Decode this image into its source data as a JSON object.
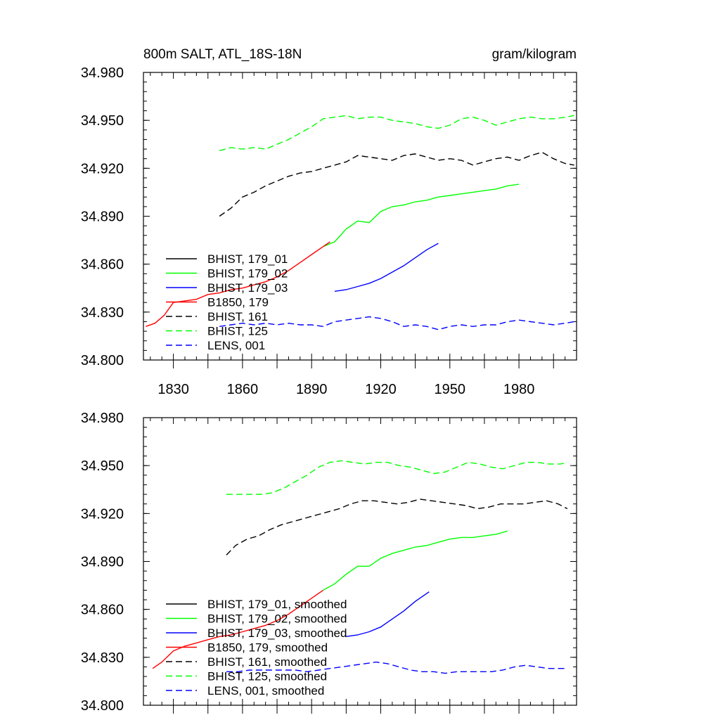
{
  "chart_data": [
    {
      "type": "line",
      "title": "800m SALT, ATL_18S-18N",
      "units": "gram/kilogram",
      "xlabel": "",
      "ylabel": "",
      "xlim": [
        1817,
        2005
      ],
      "ylim": [
        34.8,
        34.98
      ],
      "xticks": [
        "1830",
        "1860",
        "1890",
        "1920",
        "1950",
        "1980"
      ],
      "yticks": [
        "34.800",
        "34.830",
        "34.860",
        "34.890",
        "34.920",
        "34.950",
        "34.980"
      ],
      "legend_position": "lower-left",
      "series": [
        {
          "name": "BHIST, 179_01",
          "color": "#000000",
          "dash": "solid",
          "x": [],
          "y": []
        },
        {
          "name": "BHIST, 179_02",
          "color": "#00ff00",
          "dash": "solid",
          "x": [
            1895,
            1900,
            1905,
            1910,
            1915,
            1920,
            1925,
            1930,
            1935,
            1940,
            1945,
            1950,
            1955,
            1960,
            1965,
            1970,
            1975,
            1980
          ],
          "y": [
            34.871,
            34.874,
            34.882,
            34.887,
            34.886,
            34.893,
            34.896,
            34.897,
            34.899,
            34.9,
            34.902,
            34.903,
            34.904,
            34.905,
            34.906,
            34.907,
            34.909,
            34.91
          ]
        },
        {
          "name": "BHIST, 179_03",
          "color": "#0000ff",
          "dash": "solid",
          "x": [
            1900,
            1905,
            1910,
            1915,
            1920,
            1925,
            1930,
            1935,
            1940,
            1945
          ],
          "y": [
            34.843,
            34.844,
            34.846,
            34.848,
            34.851,
            34.855,
            34.859,
            34.864,
            34.869,
            34.873
          ]
        },
        {
          "name": "B1850, 179",
          "color": "#ff0000",
          "dash": "solid",
          "x": [
            1818,
            1822,
            1826,
            1830,
            1835,
            1840,
            1845,
            1850,
            1855,
            1860,
            1865,
            1870,
            1875,
            1880,
            1885,
            1890,
            1895,
            1898
          ],
          "y": [
            34.821,
            34.823,
            34.828,
            34.836,
            34.837,
            34.838,
            34.841,
            34.842,
            34.844,
            34.845,
            34.847,
            34.849,
            34.852,
            34.856,
            34.861,
            34.866,
            34.871,
            34.874
          ]
        },
        {
          "name": "BHIST, 161",
          "color": "#000000",
          "dash": "dashed",
          "x": [
            1850,
            1855,
            1860,
            1865,
            1870,
            1875,
            1880,
            1885,
            1890,
            1895,
            1900,
            1905,
            1910,
            1915,
            1920,
            1925,
            1930,
            1935,
            1940,
            1945,
            1950,
            1955,
            1960,
            1965,
            1970,
            1975,
            1980,
            1985,
            1990,
            1995,
            2000,
            2004
          ],
          "y": [
            34.89,
            34.895,
            34.902,
            34.905,
            34.909,
            34.912,
            34.915,
            34.917,
            34.918,
            34.92,
            34.922,
            34.924,
            34.928,
            34.927,
            34.926,
            34.925,
            34.928,
            34.929,
            34.927,
            34.925,
            34.926,
            34.925,
            34.922,
            34.924,
            34.926,
            34.927,
            34.925,
            34.928,
            34.93,
            34.926,
            34.923,
            34.922
          ]
        },
        {
          "name": "BHIST, 125",
          "color": "#00ff00",
          "dash": "dashed",
          "x": [
            1850,
            1855,
            1860,
            1865,
            1870,
            1875,
            1880,
            1885,
            1890,
            1895,
            1900,
            1905,
            1910,
            1915,
            1920,
            1925,
            1930,
            1935,
            1940,
            1945,
            1950,
            1955,
            1960,
            1965,
            1970,
            1975,
            1980,
            1985,
            1990,
            1995,
            2000,
            2004
          ],
          "y": [
            34.931,
            34.933,
            34.932,
            34.933,
            34.932,
            34.935,
            34.938,
            34.942,
            34.946,
            34.951,
            34.952,
            34.953,
            34.951,
            34.952,
            34.952,
            34.95,
            34.949,
            34.948,
            34.946,
            34.945,
            34.947,
            34.951,
            34.952,
            34.95,
            34.947,
            34.949,
            34.951,
            34.952,
            34.951,
            34.951,
            34.952,
            34.953
          ]
        },
        {
          "name": "LENS, 001",
          "color": "#0000ff",
          "dash": "dashed",
          "x": [
            1850,
            1855,
            1860,
            1865,
            1870,
            1875,
            1880,
            1885,
            1890,
            1895,
            1900,
            1905,
            1910,
            1915,
            1920,
            1925,
            1930,
            1935,
            1940,
            1945,
            1950,
            1955,
            1960,
            1965,
            1970,
            1975,
            1980,
            1985,
            1990,
            1995,
            2000,
            2004
          ],
          "y": [
            34.821,
            34.822,
            34.823,
            34.822,
            34.823,
            34.822,
            34.823,
            34.822,
            34.822,
            34.821,
            34.824,
            34.825,
            34.826,
            34.827,
            34.826,
            34.824,
            34.821,
            34.822,
            34.821,
            34.819,
            34.821,
            34.822,
            34.821,
            34.822,
            34.822,
            34.824,
            34.825,
            34.824,
            34.823,
            34.822,
            34.823,
            34.824
          ]
        }
      ]
    },
    {
      "type": "line",
      "title": "",
      "units": "",
      "xlabel": "",
      "ylabel": "",
      "xlim": [
        1817,
        2005
      ],
      "ylim": [
        34.8,
        34.98
      ],
      "xticks": [],
      "yticks": [
        "34.800",
        "34.830",
        "34.860",
        "34.890",
        "34.920",
        "34.950",
        "34.980"
      ],
      "legend_position": "lower-left",
      "series": [
        {
          "name": "BHIST, 179_01, smoothed",
          "color": "#000000",
          "dash": "solid",
          "x": [],
          "y": []
        },
        {
          "name": "BHIST, 179_02, smoothed",
          "color": "#00ff00",
          "dash": "solid",
          "x": [
            1895,
            1900,
            1905,
            1910,
            1915,
            1920,
            1925,
            1930,
            1935,
            1940,
            1945,
            1950,
            1955,
            1960,
            1965,
            1970,
            1975
          ],
          "y": [
            34.872,
            34.876,
            34.882,
            34.887,
            34.887,
            34.892,
            34.895,
            34.897,
            34.899,
            34.9,
            34.902,
            34.904,
            34.905,
            34.905,
            34.906,
            34.907,
            34.909
          ]
        },
        {
          "name": "BHIST, 179_03, smoothed",
          "color": "#0000ff",
          "dash": "solid",
          "x": [
            1905,
            1910,
            1915,
            1920,
            1925,
            1930,
            1935,
            1941
          ],
          "y": [
            34.843,
            34.844,
            34.846,
            34.849,
            34.854,
            34.859,
            34.865,
            34.871
          ]
        },
        {
          "name": "B1850, 179, smoothed",
          "color": "#ff0000",
          "dash": "solid",
          "x": [
            1821,
            1825,
            1830,
            1835,
            1840,
            1845,
            1850,
            1855,
            1860,
            1865,
            1870,
            1875,
            1880,
            1885,
            1890,
            1895
          ],
          "y": [
            34.823,
            34.827,
            34.834,
            34.837,
            34.839,
            34.841,
            34.843,
            34.844,
            34.846,
            34.848,
            34.85,
            34.853,
            34.857,
            34.862,
            34.867,
            34.872
          ]
        },
        {
          "name": "BHIST, 161, smoothed",
          "color": "#000000",
          "dash": "dashed",
          "x": [
            1853,
            1857,
            1862,
            1867,
            1872,
            1877,
            1882,
            1887,
            1892,
            1897,
            1902,
            1907,
            1912,
            1917,
            1922,
            1927,
            1932,
            1937,
            1942,
            1947,
            1952,
            1957,
            1962,
            1967,
            1972,
            1977,
            1982,
            1987,
            1992,
            1997,
            2001
          ],
          "y": [
            34.894,
            34.9,
            34.904,
            34.906,
            34.91,
            34.913,
            34.915,
            34.917,
            34.919,
            34.921,
            34.923,
            34.926,
            34.928,
            34.928,
            34.927,
            34.926,
            34.927,
            34.929,
            34.928,
            34.927,
            34.926,
            34.925,
            34.923,
            34.924,
            34.926,
            34.926,
            34.926,
            34.927,
            34.928,
            34.926,
            34.923
          ]
        },
        {
          "name": "BHIST, 125, smoothed",
          "color": "#00ff00",
          "dash": "dashed",
          "x": [
            1853,
            1858,
            1863,
            1868,
            1873,
            1878,
            1883,
            1888,
            1893,
            1898,
            1903,
            1908,
            1913,
            1918,
            1923,
            1928,
            1933,
            1938,
            1943,
            1948,
            1953,
            1958,
            1963,
            1968,
            1973,
            1978,
            1983,
            1988,
            1993,
            1998,
            2001
          ],
          "y": [
            34.932,
            34.932,
            34.932,
            34.932,
            34.933,
            34.936,
            34.94,
            34.944,
            34.949,
            34.952,
            34.953,
            34.952,
            34.951,
            34.952,
            34.952,
            34.95,
            34.949,
            34.947,
            34.945,
            34.946,
            34.949,
            34.952,
            34.951,
            34.949,
            34.948,
            34.95,
            34.952,
            34.952,
            34.951,
            34.951,
            34.952
          ]
        },
        {
          "name": "LENS, 001, smoothed",
          "color": "#0000ff",
          "dash": "dashed",
          "x": [
            1853,
            1858,
            1863,
            1868,
            1873,
            1878,
            1883,
            1888,
            1893,
            1898,
            1903,
            1908,
            1913,
            1918,
            1923,
            1928,
            1933,
            1938,
            1943,
            1948,
            1953,
            1958,
            1963,
            1968,
            1973,
            1978,
            1983,
            1988,
            1993,
            1998,
            2001
          ],
          "y": [
            34.821,
            34.821,
            34.822,
            34.822,
            34.822,
            34.822,
            34.822,
            34.821,
            34.822,
            34.823,
            34.824,
            34.825,
            34.826,
            34.827,
            34.826,
            34.824,
            34.822,
            34.821,
            34.821,
            34.82,
            34.821,
            34.821,
            34.821,
            34.821,
            34.822,
            34.824,
            34.825,
            34.824,
            34.823,
            34.823,
            34.823
          ]
        }
      ]
    }
  ]
}
